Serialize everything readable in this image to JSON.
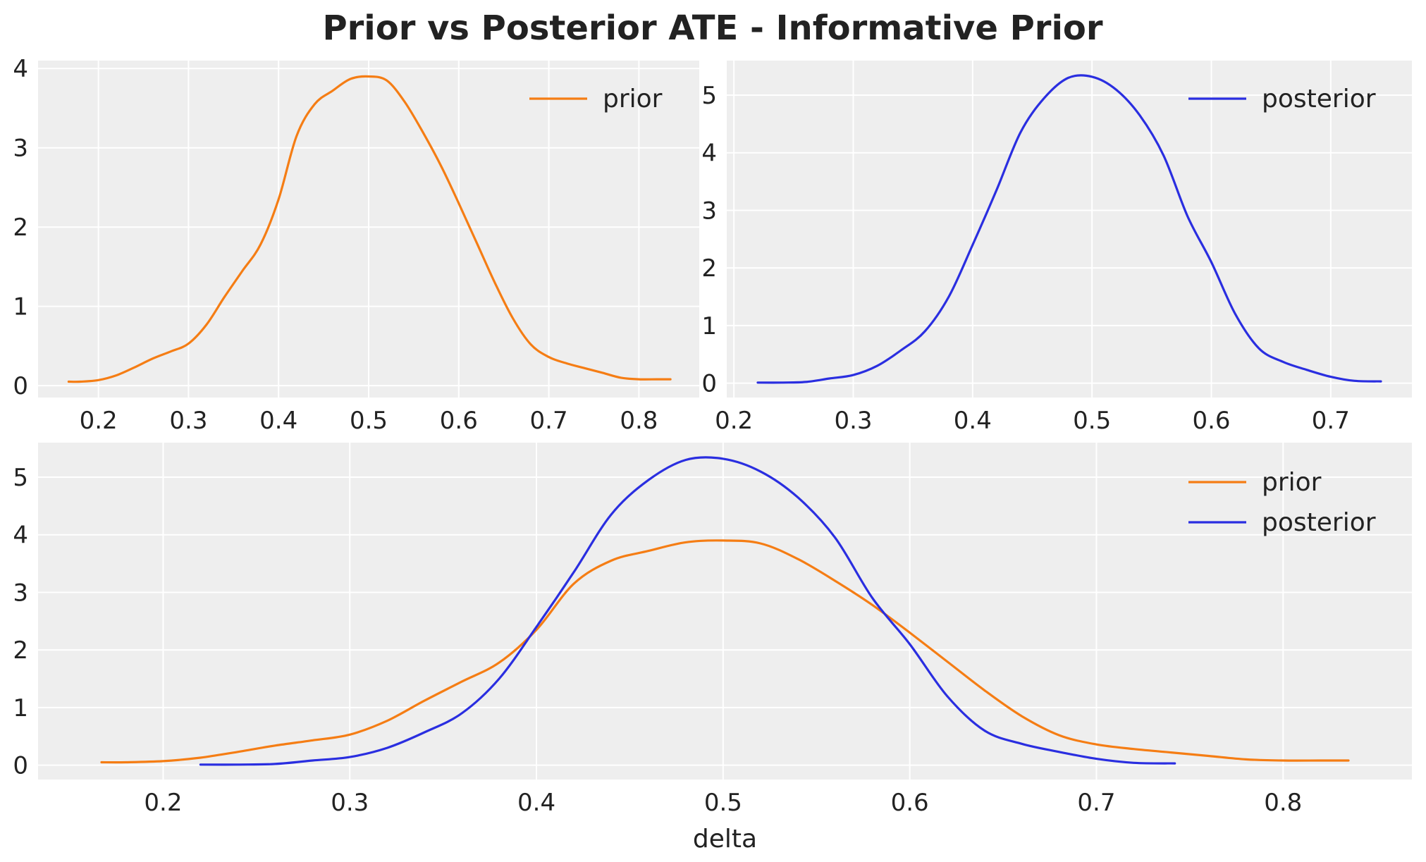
{
  "figure": {
    "title": "Prior vs Posterior ATE - Informative Prior"
  },
  "colors": {
    "prior": "#f57d14",
    "posterior": "#2a2ee0",
    "panel_background": "#eeeeee",
    "grid": "#ffffff"
  },
  "chart_data": [
    {
      "type": "line",
      "title": "",
      "xlabel": "",
      "ylabel": "",
      "xlim": [
        0.133,
        0.867
      ],
      "ylim": [
        -0.15,
        4.1
      ],
      "xticks": [
        0.2,
        0.3,
        0.4,
        0.5,
        0.6,
        0.7,
        0.8
      ],
      "xtick_labels": [
        "0.2",
        "0.3",
        "0.4",
        "0.5",
        "0.6",
        "0.7",
        "0.8"
      ],
      "yticks": [
        0,
        1,
        2,
        3,
        4
      ],
      "ytick_labels": [
        "0",
        "1",
        "2",
        "3",
        "4"
      ],
      "grid": true,
      "legend": "top-right",
      "series": [
        {
          "name": "prior",
          "color": "#f57d14",
          "x": [
            0.167,
            0.18,
            0.2,
            0.22,
            0.24,
            0.26,
            0.28,
            0.3,
            0.32,
            0.34,
            0.36,
            0.38,
            0.4,
            0.42,
            0.44,
            0.46,
            0.48,
            0.5,
            0.52,
            0.54,
            0.56,
            0.58,
            0.6,
            0.62,
            0.64,
            0.66,
            0.68,
            0.7,
            0.72,
            0.74,
            0.76,
            0.78,
            0.8,
            0.82,
            0.835
          ],
          "y": [
            0.05,
            0.05,
            0.07,
            0.13,
            0.23,
            0.34,
            0.43,
            0.53,
            0.77,
            1.12,
            1.45,
            1.78,
            2.35,
            3.15,
            3.55,
            3.72,
            3.87,
            3.9,
            3.85,
            3.58,
            3.2,
            2.78,
            2.3,
            1.8,
            1.3,
            0.85,
            0.52,
            0.36,
            0.28,
            0.22,
            0.16,
            0.1,
            0.08,
            0.08,
            0.08
          ]
        }
      ]
    },
    {
      "type": "line",
      "title": "",
      "xlabel": "",
      "ylabel": "",
      "xlim": [
        0.194,
        0.768
      ],
      "ylim": [
        -0.25,
        5.6
      ],
      "xticks": [
        0.2,
        0.3,
        0.4,
        0.5,
        0.6,
        0.7
      ],
      "xtick_labels": [
        "0.2",
        "0.3",
        "0.4",
        "0.5",
        "0.6",
        "0.7"
      ],
      "yticks": [
        0,
        1,
        2,
        3,
        4,
        5
      ],
      "ytick_labels": [
        "0",
        "1",
        "2",
        "3",
        "4",
        "5"
      ],
      "grid": true,
      "legend": "top-right",
      "series": [
        {
          "name": "posterior",
          "color": "#2a2ee0",
          "x": [
            0.22,
            0.24,
            0.26,
            0.28,
            0.3,
            0.32,
            0.34,
            0.36,
            0.38,
            0.4,
            0.42,
            0.44,
            0.46,
            0.48,
            0.5,
            0.52,
            0.54,
            0.56,
            0.58,
            0.6,
            0.62,
            0.64,
            0.66,
            0.68,
            0.7,
            0.72,
            0.742
          ],
          "y": [
            0.01,
            0.01,
            0.02,
            0.08,
            0.14,
            0.3,
            0.57,
            0.9,
            1.5,
            2.4,
            3.35,
            4.35,
            4.95,
            5.3,
            5.32,
            5.1,
            4.65,
            3.95,
            2.9,
            2.1,
            1.2,
            0.6,
            0.37,
            0.23,
            0.11,
            0.04,
            0.03
          ]
        }
      ]
    },
    {
      "type": "line",
      "title": "",
      "xlabel": "delta",
      "ylabel": "",
      "xlim": [
        0.133,
        0.869
      ],
      "ylim": [
        -0.25,
        5.6
      ],
      "xticks": [
        0.2,
        0.3,
        0.4,
        0.5,
        0.6,
        0.7,
        0.8
      ],
      "xtick_labels": [
        "0.2",
        "0.3",
        "0.4",
        "0.5",
        "0.6",
        "0.7",
        "0.8"
      ],
      "yticks": [
        0,
        1,
        2,
        3,
        4,
        5
      ],
      "ytick_labels": [
        "0",
        "1",
        "2",
        "3",
        "4",
        "5"
      ],
      "grid": true,
      "legend": "top-right",
      "series": [
        {
          "name": "prior",
          "color": "#f57d14",
          "x": [
            0.167,
            0.18,
            0.2,
            0.22,
            0.24,
            0.26,
            0.28,
            0.3,
            0.32,
            0.34,
            0.36,
            0.38,
            0.4,
            0.42,
            0.44,
            0.46,
            0.48,
            0.5,
            0.52,
            0.54,
            0.56,
            0.58,
            0.6,
            0.62,
            0.64,
            0.66,
            0.68,
            0.7,
            0.72,
            0.74,
            0.76,
            0.78,
            0.8,
            0.82,
            0.835
          ],
          "y": [
            0.05,
            0.05,
            0.07,
            0.13,
            0.23,
            0.34,
            0.43,
            0.53,
            0.77,
            1.12,
            1.45,
            1.78,
            2.35,
            3.15,
            3.55,
            3.72,
            3.87,
            3.9,
            3.85,
            3.58,
            3.2,
            2.78,
            2.3,
            1.8,
            1.3,
            0.85,
            0.52,
            0.36,
            0.28,
            0.22,
            0.16,
            0.1,
            0.08,
            0.08,
            0.08
          ]
        },
        {
          "name": "posterior",
          "color": "#2a2ee0",
          "x": [
            0.22,
            0.24,
            0.26,
            0.28,
            0.3,
            0.32,
            0.34,
            0.36,
            0.38,
            0.4,
            0.42,
            0.44,
            0.46,
            0.48,
            0.5,
            0.52,
            0.54,
            0.56,
            0.58,
            0.6,
            0.62,
            0.64,
            0.66,
            0.68,
            0.7,
            0.72,
            0.742
          ],
          "y": [
            0.01,
            0.01,
            0.02,
            0.08,
            0.14,
            0.3,
            0.57,
            0.9,
            1.5,
            2.4,
            3.35,
            4.35,
            4.95,
            5.3,
            5.32,
            5.1,
            4.65,
            3.95,
            2.9,
            2.1,
            1.2,
            0.6,
            0.37,
            0.23,
            0.11,
            0.04,
            0.03
          ]
        }
      ]
    }
  ]
}
